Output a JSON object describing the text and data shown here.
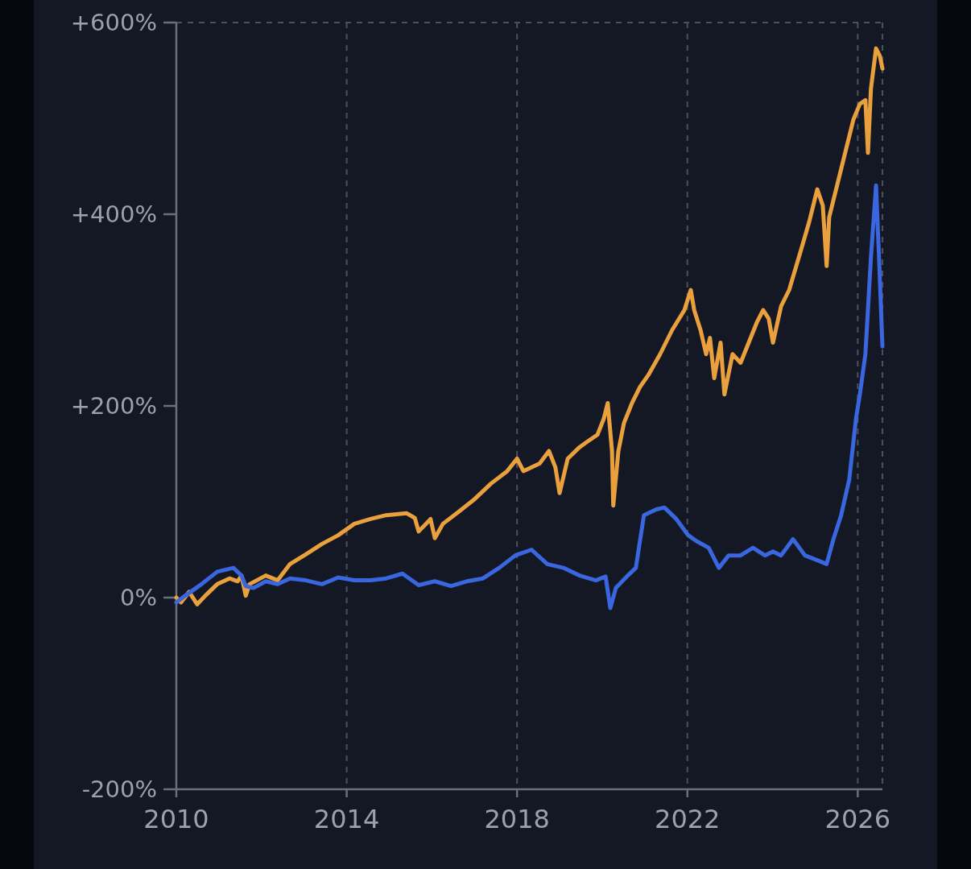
{
  "chart_data": {
    "type": "line",
    "xlim": [
      2010,
      2026.58
    ],
    "xticks": [
      2010,
      2014,
      2018,
      2022,
      2026
    ],
    "ylim": [
      -200,
      600
    ],
    "yticks": [
      {
        "value": -200,
        "label": "-200%"
      },
      {
        "value": 0,
        "label": "0%"
      },
      {
        "value": 200,
        "label": "+200%"
      },
      {
        "value": 400,
        "label": "+400%"
      },
      {
        "value": 600,
        "label": "+600%"
      }
    ],
    "grid": "x",
    "marker": "none",
    "line_style": "solid",
    "series": [
      {
        "color": "#eaa03c",
        "x": [
          2010.0,
          2010.11,
          2010.3,
          2010.49,
          2010.68,
          2010.96,
          2011.25,
          2011.44,
          2011.53,
          2011.63,
          2011.72,
          2012.1,
          2012.38,
          2012.67,
          2013.04,
          2013.42,
          2013.8,
          2014.18,
          2014.56,
          2014.93,
          2015.41,
          2015.6,
          2015.69,
          2015.97,
          2016.07,
          2016.26,
          2016.64,
          2017.01,
          2017.39,
          2017.77,
          2018.0,
          2018.15,
          2018.53,
          2018.75,
          2018.9,
          2019.0,
          2019.19,
          2019.47,
          2019.66,
          2019.89,
          2020.04,
          2020.13,
          2020.23,
          2020.26,
          2020.38,
          2020.51,
          2020.7,
          2020.89,
          2021.08,
          2021.36,
          2021.64,
          2021.93,
          2022.08,
          2022.16,
          2022.31,
          2022.44,
          2022.53,
          2022.63,
          2022.78,
          2022.87,
          2023.06,
          2023.25,
          2023.44,
          2023.63,
          2023.78,
          2023.91,
          2024.01,
          2024.2,
          2024.39,
          2024.67,
          2024.86,
          2025.05,
          2025.18,
          2025.27,
          2025.33,
          2025.52,
          2025.71,
          2025.9,
          2026.05,
          2026.18,
          2026.24,
          2026.31,
          2026.43,
          2026.52,
          2026.58
        ],
        "values": [
          0,
          -5,
          6,
          -7,
          2,
          14,
          20,
          17,
          23,
          2,
          14,
          23,
          18,
          35,
          45,
          56,
          65,
          77,
          82,
          86,
          88,
          83,
          69,
          82,
          62,
          77,
          90,
          103,
          119,
          132,
          145,
          132,
          140,
          153,
          136,
          109,
          145,
          157,
          163,
          170,
          187,
          203,
          153,
          96,
          153,
          182,
          203,
          220,
          232,
          254,
          279,
          300,
          321,
          300,
          279,
          254,
          271,
          229,
          266,
          212,
          254,
          245,
          266,
          287,
          300,
          291,
          266,
          304,
          321,
          363,
          392,
          426,
          409,
          346,
          397,
          431,
          465,
          499,
          515,
          519,
          464,
          531,
          573,
          565,
          552
        ]
      },
      {
        "color": "#3a66e0",
        "x": [
          2010.0,
          2010.21,
          2010.59,
          2010.96,
          2011.34,
          2011.53,
          2011.63,
          2011.81,
          2012.1,
          2012.38,
          2012.67,
          2013.04,
          2013.42,
          2013.8,
          2014.18,
          2014.56,
          2014.93,
          2015.31,
          2015.69,
          2016.07,
          2016.45,
          2016.82,
          2017.2,
          2017.58,
          2017.96,
          2018.34,
          2018.71,
          2019.09,
          2019.47,
          2019.85,
          2020.08,
          2020.19,
          2020.32,
          2020.6,
          2020.79,
          2020.98,
          2021.27,
          2021.46,
          2021.74,
          2022.02,
          2022.21,
          2022.5,
          2022.74,
          2022.97,
          2023.25,
          2023.54,
          2023.82,
          2024.01,
          2024.2,
          2024.48,
          2024.76,
          2025.05,
          2025.27,
          2025.43,
          2025.61,
          2025.8,
          2025.96,
          2026.05,
          2026.18,
          2026.31,
          2026.43,
          2026.5,
          2026.58
        ],
        "values": [
          -5,
          2,
          14,
          27,
          31,
          23,
          12,
          10,
          17,
          14,
          20,
          18,
          14,
          21,
          18,
          18,
          20,
          25,
          13,
          17,
          12,
          17,
          20,
          31,
          44,
          50,
          35,
          31,
          23,
          18,
          22,
          -11,
          10,
          23,
          31,
          86,
          92,
          94,
          82,
          65,
          59,
          52,
          31,
          44,
          44,
          52,
          44,
          48,
          44,
          61,
          44,
          39,
          35,
          61,
          86,
          123,
          187,
          212,
          254,
          355,
          430,
          355,
          262
        ]
      }
    ]
  }
}
